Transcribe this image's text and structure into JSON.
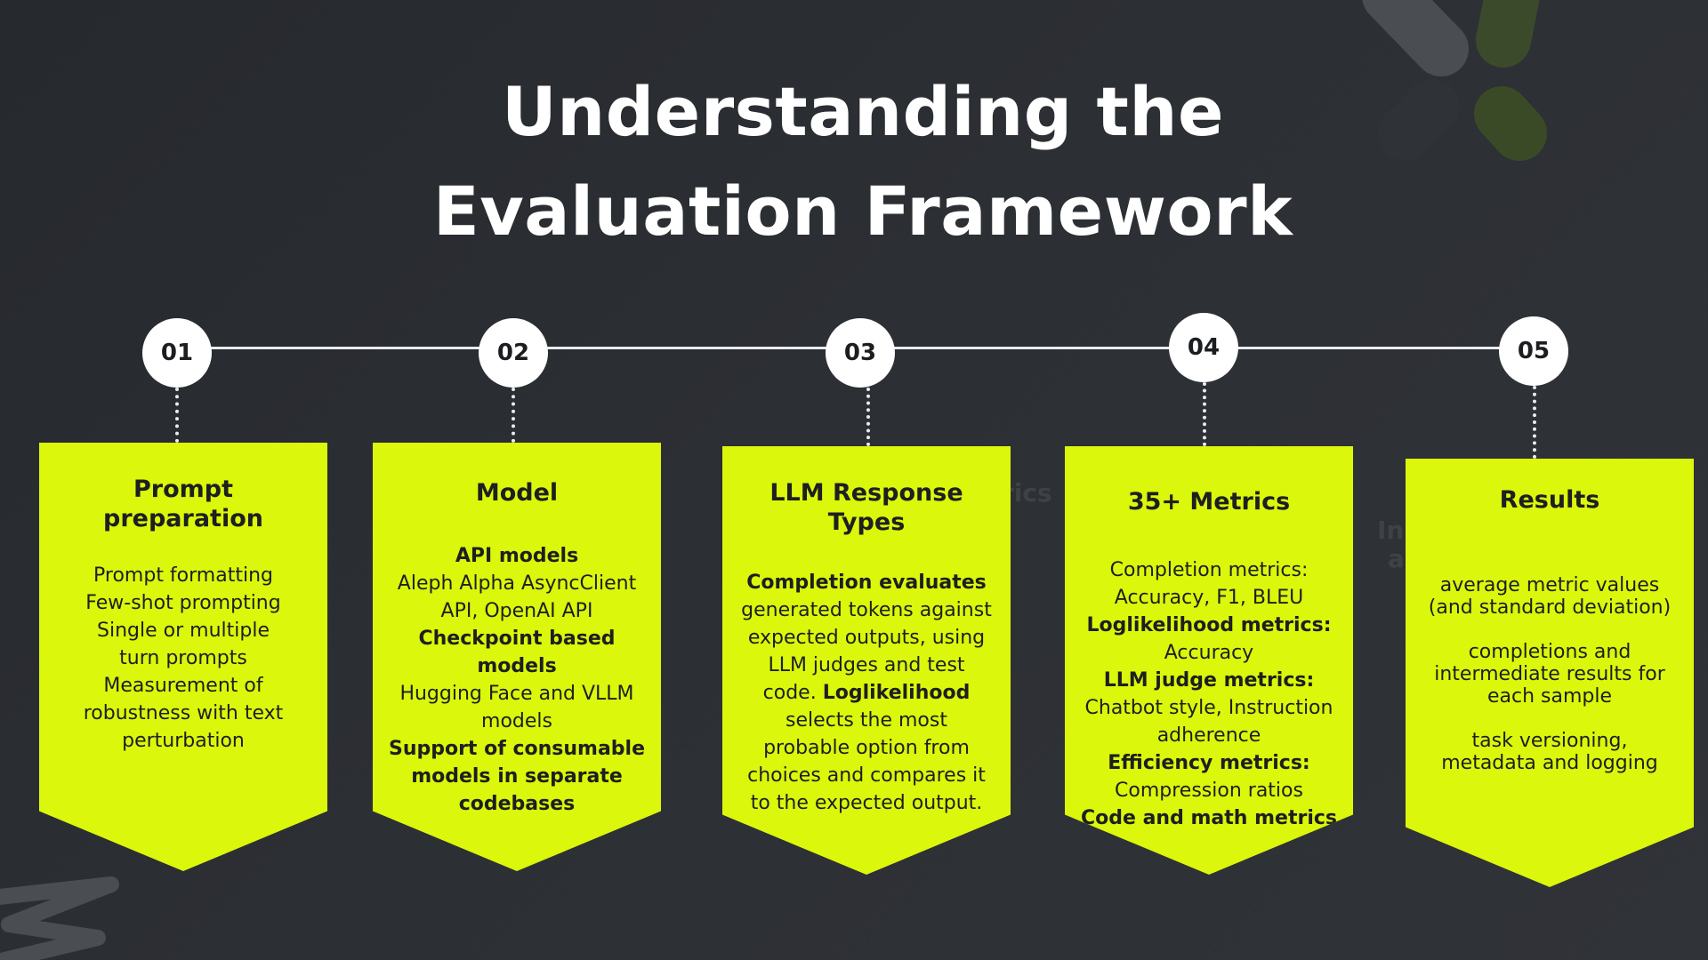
{
  "title": {
    "line1": "Understanding the",
    "line2": "Evaluation Framework"
  },
  "steps": [
    {
      "number": "01",
      "title": "Prompt preparation",
      "body": [
        "Prompt formatting",
        "Few-shot prompting",
        "Single or multiple",
        "turn prompts",
        "Measurement of",
        "robustness with text",
        "perturbation"
      ]
    },
    {
      "number": "02",
      "title": "Model",
      "body": [
        "API models",
        "Aleph Alpha AsyncClient",
        "API, OpenAI API",
        "Checkpoint based",
        "models",
        "Hugging Face and VLLM",
        "models",
        "Support of consumable",
        "models in separate",
        "codebases"
      ]
    },
    {
      "number": "03",
      "title": "LLM Response Types",
      "body": [
        "Completion evaluates",
        "generated tokens against",
        "expected outputs, using",
        "LLM judges and test",
        "code.",
        "Loglikelihood",
        "selects the most",
        "probable option from",
        "choices and compares it",
        "to the expected output."
      ]
    },
    {
      "number": "04",
      "title": "35+ Metrics",
      "body": [
        "Completion metrics:",
        "Accuracy, F1, BLEU",
        "Loglikelihood metrics:",
        "Accuracy",
        "LLM judge metrics:",
        "Chatbot style, Instruction",
        "adherence",
        "Efficiency metrics:",
        "Compression ratios",
        "Code and math metrics"
      ]
    },
    {
      "number": "05",
      "title": "Results",
      "body": [
        "average metric values",
        "(and standard deviation)",
        "completions and",
        "intermediate results for",
        "each sample",
        "task versioning,",
        "metadata and logging"
      ]
    }
  ],
  "colors": {
    "background": "#2a2d31",
    "card": "#dbf70c",
    "node": "#ffffff",
    "line": "#e9ebed",
    "text_dark": "#1d1f20",
    "title_text": "#ffffff"
  }
}
